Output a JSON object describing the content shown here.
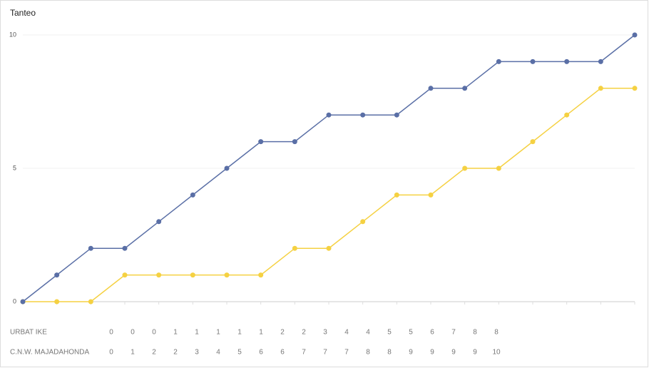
{
  "chart_data": {
    "type": "line",
    "title": "Tanteo",
    "ylim": [
      0,
      10
    ],
    "yticks": [
      0,
      5,
      10
    ],
    "grid": true,
    "series": [
      {
        "name": "URBAT IKE",
        "color": "#f5d142",
        "values": [
          0,
          0,
          0,
          1,
          1,
          1,
          1,
          1,
          2,
          2,
          3,
          4,
          4,
          5,
          5,
          6,
          7,
          8,
          8
        ]
      },
      {
        "name": "C.N.W. MAJADAHONDA",
        "color": "#5a6fa6",
        "values": [
          0,
          1,
          2,
          2,
          3,
          4,
          5,
          6,
          6,
          7,
          7,
          7,
          8,
          8,
          9,
          9,
          9,
          9,
          10
        ]
      }
    ]
  }
}
